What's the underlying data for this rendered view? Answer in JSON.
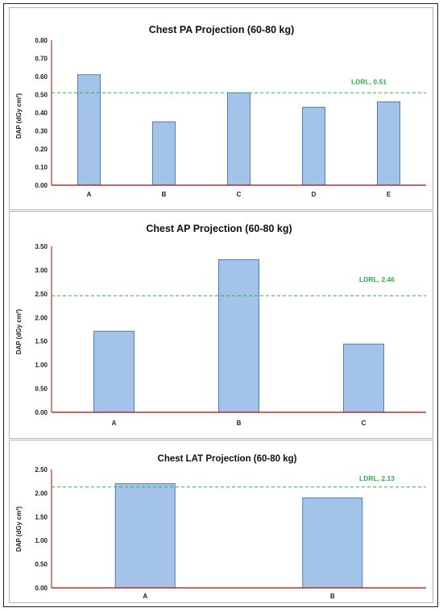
{
  "colors": {
    "bar_fill": "#a3c4e8",
    "bar_stroke": "#4d7fb8",
    "axis": "#c00000",
    "ldrl": "#2ab24a"
  },
  "chart_data": [
    {
      "type": "bar",
      "title": "Chest PA Projection (60-80 kg)",
      "ylabel": "DAP (dGy cm²)",
      "xlabel": "",
      "categories": [
        "A",
        "B",
        "C",
        "D",
        "E"
      ],
      "values": [
        0.61,
        0.35,
        0.51,
        0.43,
        0.46
      ],
      "ylim": [
        0,
        0.8
      ],
      "yticks": [
        "0.00",
        "0.10",
        "0.20",
        "0.30",
        "0.40",
        "0.50",
        "0.60",
        "0.70",
        "0.80"
      ],
      "reference_line": {
        "value": 0.51,
        "label": "LDRL, 0.51"
      },
      "grid": false,
      "legend": "none"
    },
    {
      "type": "bar",
      "title": "Chest AP Projection (60-80 kg)",
      "ylabel": "DAP (dGy cm²)",
      "xlabel": "",
      "categories": [
        "A",
        "B",
        "C"
      ],
      "values": [
        1.71,
        3.22,
        1.44
      ],
      "ylim": [
        0,
        3.5
      ],
      "yticks": [
        "0.00",
        "0.50",
        "1.00",
        "1.50",
        "2.00",
        "2.50",
        "3.00",
        "3.50"
      ],
      "reference_line": {
        "value": 2.46,
        "label": "LDRL, 2.46"
      },
      "grid": false,
      "legend": "none"
    },
    {
      "type": "bar",
      "title": "Chest LAT Projection (60-80 kg)",
      "ylabel": "DAP (dGy cm²)",
      "xlabel": "",
      "categories": [
        "A",
        "B"
      ],
      "values": [
        2.2,
        1.9
      ],
      "ylim": [
        0,
        2.5
      ],
      "yticks": [
        "0.00",
        "0.50",
        "1.00",
        "1.50",
        "2.00",
        "2.50"
      ],
      "reference_line": {
        "value": 2.13,
        "label": "LDRL, 2.13"
      },
      "grid": false,
      "legend": "none"
    }
  ]
}
